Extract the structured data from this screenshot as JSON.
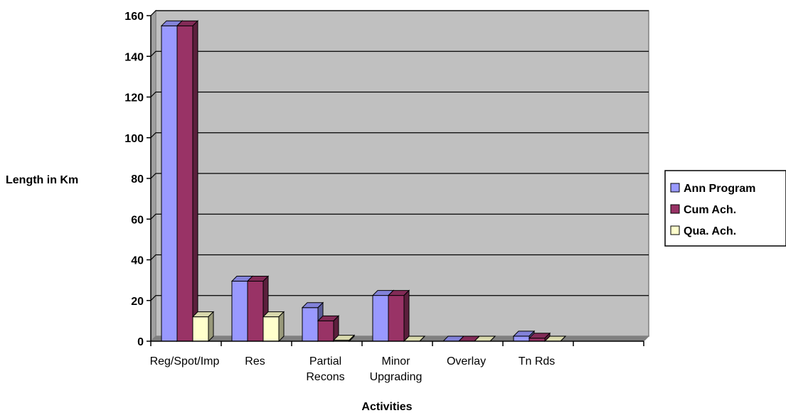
{
  "chart_data": {
    "type": "bar",
    "categories": [
      [
        "Reg/Spot/Imp"
      ],
      [
        "Res"
      ],
      [
        "Partial",
        "Recons"
      ],
      [
        "Minor",
        "Upgrading"
      ],
      [
        "Overlay"
      ],
      [
        "Tn Rds"
      ],
      [
        ""
      ]
    ],
    "series": [
      {
        "name": "Ann Program",
        "values": [
          155,
          29.5,
          16.5,
          22.5,
          0,
          2.5,
          null
        ],
        "color": "#9999ff"
      },
      {
        "name": "Cum Ach.",
        "values": [
          155,
          29.5,
          10,
          22.5,
          0,
          1.5,
          null
        ],
        "color": "#993366"
      },
      {
        "name": "Qua. Ach.",
        "values": [
          12,
          12,
          0.5,
          0,
          0,
          0,
          null
        ],
        "color": "#ffffcc"
      }
    ],
    "title": "",
    "xlabel": "Activities",
    "ylabel": "Length in Km",
    "ylim": [
      0,
      160
    ],
    "yticks": [
      0,
      20,
      40,
      60,
      80,
      100,
      120,
      140,
      160
    ],
    "grid": true,
    "legend": "right",
    "plot_background": "#c0c0c0"
  }
}
